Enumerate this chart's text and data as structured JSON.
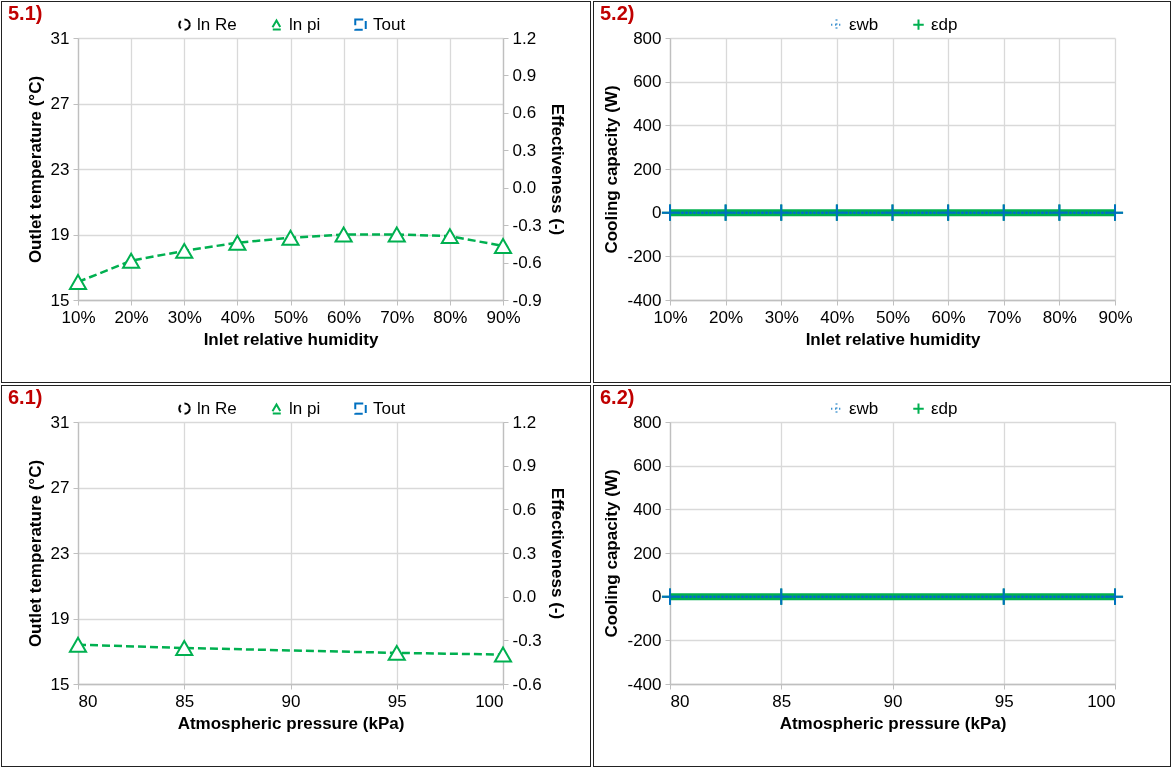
{
  "chart_data": [
    {
      "type": "line",
      "title": "5.1)",
      "xlabel": "Inlet relative humidity",
      "ylabel": "Outlet temperature (°C)",
      "y2label": "Effectiveness (-)",
      "categories": [
        "10%",
        "20%",
        "30%",
        "40%",
        "50%",
        "60%",
        "70%",
        "80%",
        "90%"
      ],
      "ylim": [
        15,
        31
      ],
      "yticks": [
        15,
        19,
        23,
        27,
        31
      ],
      "y2lim": [
        -0.9,
        1.2
      ],
      "y2ticks": [
        -0.9,
        -0.6,
        -0.3,
        {
          "value": 0,
          "label": "0.0"
        },
        0.3,
        0.6,
        0.9,
        1.2
      ],
      "grid": true,
      "legend": "top",
      "series": [
        {
          "name": "ln Re",
          "color": "#000000",
          "line_style": "dashed",
          "marker": "circle",
          "values": [
            null,
            null,
            null,
            null,
            null,
            null,
            null,
            null,
            null
          ]
        },
        {
          "name": "ln pi",
          "color": "#00b050",
          "line_style": "dashed",
          "marker": "triangle",
          "values": [
            16.1,
            17.4,
            18.0,
            18.5,
            18.8,
            19.0,
            19.0,
            18.9,
            18.3
          ]
        },
        {
          "name": "Tout",
          "color": "#0070c0",
          "line_style": "dashed",
          "marker": "square",
          "values": [
            null,
            null,
            null,
            null,
            null,
            null,
            null,
            null,
            null
          ]
        }
      ]
    },
    {
      "type": "line",
      "title": "5.2)",
      "xlabel": "Inlet relative humidity",
      "ylabel": "Cooling capacity (W)",
      "categories": [
        "10%",
        "20%",
        "30%",
        "40%",
        "50%",
        "60%",
        "70%",
        "80%",
        "90%"
      ],
      "ylim": [
        -400,
        800
      ],
      "yticks": [
        -400,
        -200,
        0,
        200,
        400,
        600,
        800
      ],
      "grid": true,
      "legend": "top",
      "series": [
        {
          "name": "εwb",
          "color": "#0070c0",
          "line_style": "dotted",
          "marker": "cross",
          "values": [
            0,
            0,
            0,
            0,
            0,
            0,
            0,
            0,
            0
          ]
        },
        {
          "name": "εdp",
          "color": "#00b050",
          "line_style": "solid",
          "marker": "cross",
          "values": [
            0,
            0,
            0,
            0,
            0,
            0,
            0,
            0,
            0
          ]
        }
      ]
    },
    {
      "type": "line",
      "title": "6.1)",
      "xlabel": "Atmospheric pressure (kPa)",
      "ylabel": "Outlet temperature (°C)",
      "y2label": "Effectiveness (-)",
      "x": [
        80,
        85,
        95,
        100
      ],
      "xlim": [
        80,
        100
      ],
      "xticks": [
        80,
        85,
        90,
        95,
        100
      ],
      "ylim": [
        15,
        31
      ],
      "yticks": [
        15,
        19,
        23,
        27,
        31
      ],
      "y2lim": [
        -0.6,
        1.2
      ],
      "y2ticks": [
        -0.6,
        -0.3,
        {
          "value": 0,
          "label": "0.0"
        },
        0.3,
        0.6,
        0.9,
        1.2
      ],
      "grid": true,
      "legend": "top",
      "series": [
        {
          "name": "ln Re",
          "color": "#000000",
          "line_style": "dashed",
          "marker": "circle",
          "values": [
            null,
            null,
            null,
            null
          ]
        },
        {
          "name": "ln pi",
          "color": "#00b050",
          "line_style": "dashed",
          "marker": "triangle",
          "values": [
            17.4,
            17.2,
            16.9,
            16.8
          ]
        },
        {
          "name": "Tout",
          "color": "#0070c0",
          "line_style": "dashed",
          "marker": "square",
          "values": [
            null,
            null,
            null,
            null
          ]
        }
      ]
    },
    {
      "type": "line",
      "title": "6.2)",
      "xlabel": "Atmospheric pressure (kPa)",
      "ylabel": "Cooling capacity (W)",
      "x": [
        80,
        85,
        95,
        100
      ],
      "xlim": [
        80,
        100
      ],
      "xticks": [
        80,
        85,
        90,
        95,
        100
      ],
      "ylim": [
        -400,
        800
      ],
      "yticks": [
        -400,
        -200,
        0,
        200,
        400,
        600,
        800
      ],
      "grid": true,
      "legend": "top",
      "series": [
        {
          "name": "εwb",
          "color": "#0070c0",
          "line_style": "dotted",
          "marker": "cross",
          "values": [
            0,
            0,
            0,
            0
          ]
        },
        {
          "name": "εdp",
          "color": "#00b050",
          "line_style": "solid",
          "marker": "cross",
          "values": [
            0,
            0,
            0,
            0
          ]
        }
      ]
    }
  ]
}
